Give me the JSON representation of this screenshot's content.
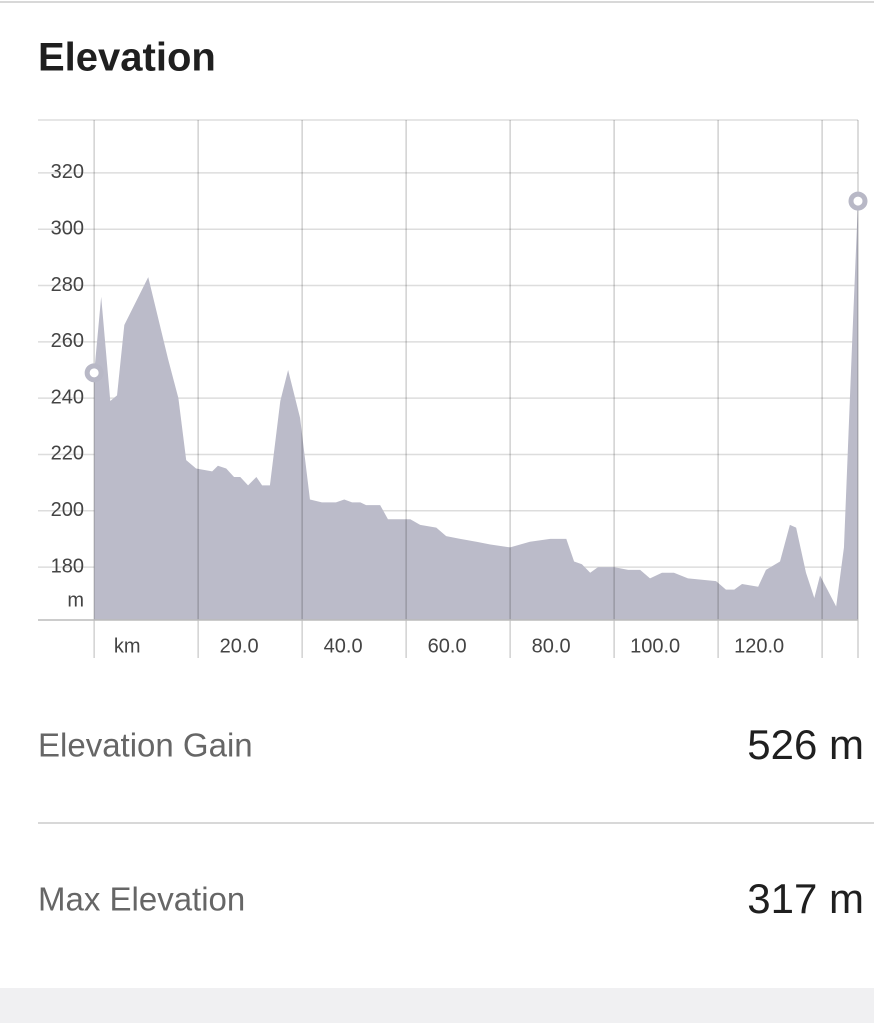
{
  "header": {
    "title": "Elevation"
  },
  "chart_data": {
    "type": "area",
    "x": [
      0,
      1.35,
      3.1,
      4.4,
      5.8,
      10.4,
      14.2,
      16.2,
      17.7,
      19.6,
      22.7,
      23.8,
      25.4,
      26.9,
      28.1,
      29.6,
      31.2,
      32.3,
      33.8,
      35.8,
      37.3,
      39.6,
      41.5,
      43.8,
      46.5,
      48.1,
      49.6,
      51.2,
      52.3,
      55.0,
      56.5,
      59.6,
      60.8,
      62.7,
      65.8,
      67.7,
      70.4,
      73.5,
      76.2,
      80.0,
      83.8,
      87.7,
      90.8,
      92.3,
      93.8,
      95.4,
      96.9,
      100,
      102.7,
      105,
      106.9,
      109.2,
      111.5,
      114.2,
      119.6,
      121.5,
      123.1,
      124.6,
      127.7,
      129.2,
      131.9,
      133.8,
      135,
      136.9,
      138.5,
      139.6,
      142.7,
      144.2,
      145.8,
      146.9
    ],
    "values": [
      249,
      276,
      239,
      241,
      266,
      283,
      254,
      240,
      218,
      215,
      214,
      216,
      215,
      212,
      212,
      209,
      212,
      209,
      209,
      239,
      250,
      233,
      204,
      203,
      203,
      204,
      203,
      203,
      202,
      202,
      197,
      197,
      197,
      195,
      194,
      191,
      190,
      189,
      188,
      187,
      189,
      190,
      190,
      182,
      181,
      178,
      180,
      180,
      179,
      179,
      176,
      178,
      178,
      176,
      175,
      172,
      172,
      174,
      173,
      179,
      182,
      195,
      194,
      178,
      169,
      177,
      166,
      187,
      261,
      310
    ],
    "color": "#bbbbc9",
    "xlim": [
      -10.8,
      146.9
    ],
    "xticks": [
      {
        "value": 0,
        "label": "km"
      },
      {
        "value": 20,
        "label": "20.0"
      },
      {
        "value": 40,
        "label": "40.0"
      },
      {
        "value": 60,
        "label": "60.0"
      },
      {
        "value": 80,
        "label": "80.0"
      },
      {
        "value": 100,
        "label": "100.0"
      },
      {
        "value": 120,
        "label": "120.0"
      },
      {
        "value": 140,
        "label": null
      }
    ],
    "ylim": [
      161.2,
      338.8
    ],
    "yticks": [
      180,
      200,
      220,
      240,
      260,
      280,
      300,
      320
    ],
    "y_unit": "m",
    "grid": true
  },
  "stats": [
    {
      "label": "Elevation Gain",
      "value": "526 m"
    },
    {
      "label": "Max Elevation",
      "value": "317 m"
    }
  ]
}
